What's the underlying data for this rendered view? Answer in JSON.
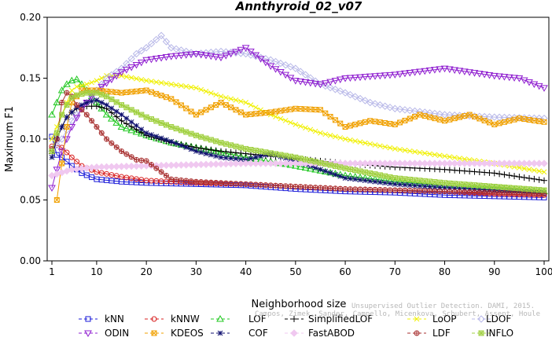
{
  "chart_data": {
    "type": "line",
    "title": "Annthyroid_02_v07",
    "xlabel": "Neighborhood size",
    "ylabel": "Maximum F1",
    "xlim": [
      1,
      100
    ],
    "ylim": [
      0,
      0.2
    ],
    "xticks": [
      1,
      10,
      20,
      30,
      40,
      50,
      60,
      70,
      80,
      90,
      100
    ],
    "yticks": [
      0,
      0.05,
      0.1,
      0.15,
      0.2
    ],
    "ytick_labels": [
      "0.00",
      "0.05",
      "0.10",
      "0.15",
      "0.20"
    ],
    "legend_position": "bottom",
    "grid": false,
    "series": [
      {
        "name": "kNN",
        "color": "#1a1ad8",
        "marker": "square",
        "points": [
          [
            1,
            0.102
          ],
          [
            2,
            0.087
          ],
          [
            3,
            0.085
          ],
          [
            5,
            0.078
          ],
          [
            7,
            0.072
          ],
          [
            10,
            0.067
          ],
          [
            15,
            0.065
          ],
          [
            20,
            0.064
          ],
          [
            30,
            0.063
          ],
          [
            40,
            0.062
          ],
          [
            50,
            0.059
          ],
          [
            60,
            0.057
          ],
          [
            70,
            0.056
          ],
          [
            80,
            0.054
          ],
          [
            90,
            0.053
          ],
          [
            100,
            0.052
          ]
        ]
      },
      {
        "name": "kNNW",
        "color": "#d82020",
        "marker": "circle",
        "points": [
          [
            1,
            0.094
          ],
          [
            2,
            0.095
          ],
          [
            3,
            0.093
          ],
          [
            5,
            0.085
          ],
          [
            7,
            0.078
          ],
          [
            10,
            0.073
          ],
          [
            15,
            0.069
          ],
          [
            20,
            0.066
          ],
          [
            30,
            0.064
          ],
          [
            40,
            0.063
          ],
          [
            50,
            0.061
          ],
          [
            60,
            0.059
          ],
          [
            70,
            0.058
          ],
          [
            80,
            0.057
          ],
          [
            90,
            0.055
          ],
          [
            100,
            0.054
          ]
        ]
      },
      {
        "name": "LOF",
        "color": "#20c820",
        "marker": "triangle-up",
        "points": [
          [
            1,
            0.12
          ],
          [
            2,
            0.13
          ],
          [
            3,
            0.14
          ],
          [
            4,
            0.145
          ],
          [
            5,
            0.148
          ],
          [
            6,
            0.149
          ],
          [
            7,
            0.145
          ],
          [
            8,
            0.14
          ],
          [
            10,
            0.13
          ],
          [
            12,
            0.12
          ],
          [
            15,
            0.11
          ],
          [
            20,
            0.103
          ],
          [
            25,
            0.097
          ],
          [
            30,
            0.093
          ],
          [
            40,
            0.085
          ],
          [
            50,
            0.078
          ],
          [
            60,
            0.07
          ],
          [
            70,
            0.065
          ],
          [
            80,
            0.062
          ],
          [
            90,
            0.06
          ],
          [
            100,
            0.057
          ]
        ]
      },
      {
        "name": "SimplifiedLOF",
        "color": "#000000",
        "marker": "plus",
        "points": [
          [
            1,
            0.088
          ],
          [
            2,
            0.1
          ],
          [
            3,
            0.11
          ],
          [
            4,
            0.118
          ],
          [
            5,
            0.122
          ],
          [
            6,
            0.125
          ],
          [
            8,
            0.127
          ],
          [
            10,
            0.127
          ],
          [
            12,
            0.125
          ],
          [
            15,
            0.115
          ],
          [
            20,
            0.103
          ],
          [
            25,
            0.097
          ],
          [
            30,
            0.093
          ],
          [
            35,
            0.09
          ],
          [
            40,
            0.088
          ],
          [
            50,
            0.084
          ],
          [
            60,
            0.08
          ],
          [
            70,
            0.077
          ],
          [
            80,
            0.075
          ],
          [
            90,
            0.072
          ],
          [
            100,
            0.066
          ]
        ]
      },
      {
        "name": "LoOP",
        "color": "#f0f000",
        "marker": "x",
        "points": [
          [
            1,
            0.1
          ],
          [
            2,
            0.11
          ],
          [
            3,
            0.12
          ],
          [
            4,
            0.13
          ],
          [
            5,
            0.14
          ],
          [
            6,
            0.143
          ],
          [
            8,
            0.145
          ],
          [
            10,
            0.148
          ],
          [
            12,
            0.152
          ],
          [
            15,
            0.152
          ],
          [
            20,
            0.148
          ],
          [
            25,
            0.145
          ],
          [
            30,
            0.142
          ],
          [
            35,
            0.135
          ],
          [
            40,
            0.13
          ],
          [
            45,
            0.12
          ],
          [
            50,
            0.112
          ],
          [
            55,
            0.105
          ],
          [
            60,
            0.1
          ],
          [
            70,
            0.092
          ],
          [
            80,
            0.086
          ],
          [
            90,
            0.08
          ],
          [
            100,
            0.073
          ]
        ]
      },
      {
        "name": "LDOF",
        "color": "#b8b8e8",
        "marker": "diamond",
        "points": [
          [
            1,
            0.09
          ],
          [
            3,
            0.1
          ],
          [
            5,
            0.115
          ],
          [
            8,
            0.13
          ],
          [
            10,
            0.14
          ],
          [
            12,
            0.15
          ],
          [
            15,
            0.158
          ],
          [
            18,
            0.17
          ],
          [
            20,
            0.175
          ],
          [
            23,
            0.185
          ],
          [
            25,
            0.175
          ],
          [
            30,
            0.17
          ],
          [
            35,
            0.172
          ],
          [
            40,
            0.17
          ],
          [
            45,
            0.165
          ],
          [
            50,
            0.158
          ],
          [
            55,
            0.145
          ],
          [
            60,
            0.138
          ],
          [
            65,
            0.13
          ],
          [
            70,
            0.125
          ],
          [
            80,
            0.12
          ],
          [
            90,
            0.118
          ],
          [
            100,
            0.117
          ]
        ]
      },
      {
        "name": "ODIN",
        "color": "#9020d0",
        "marker": "triangle-down",
        "points": [
          [
            1,
            0.06
          ],
          [
            2,
            0.075
          ],
          [
            3,
            0.09
          ],
          [
            5,
            0.11
          ],
          [
            7,
            0.125
          ],
          [
            10,
            0.14
          ],
          [
            15,
            0.155
          ],
          [
            20,
            0.165
          ],
          [
            25,
            0.168
          ],
          [
            30,
            0.17
          ],
          [
            35,
            0.167
          ],
          [
            40,
            0.175
          ],
          [
            45,
            0.16
          ],
          [
            50,
            0.148
          ],
          [
            55,
            0.145
          ],
          [
            60,
            0.15
          ],
          [
            70,
            0.153
          ],
          [
            80,
            0.158
          ],
          [
            90,
            0.152
          ],
          [
            95,
            0.15
          ],
          [
            100,
            0.142
          ]
        ]
      },
      {
        "name": "KDEOS",
        "color": "#f0a000",
        "marker": "square-x",
        "points": [
          [
            2,
            0.05
          ],
          [
            3,
            0.08
          ],
          [
            4,
            0.11
          ],
          [
            5,
            0.13
          ],
          [
            7,
            0.14
          ],
          [
            10,
            0.14
          ],
          [
            15,
            0.138
          ],
          [
            20,
            0.14
          ],
          [
            25,
            0.133
          ],
          [
            30,
            0.12
          ],
          [
            35,
            0.13
          ],
          [
            40,
            0.12
          ],
          [
            45,
            0.122
          ],
          [
            50,
            0.125
          ],
          [
            55,
            0.124
          ],
          [
            60,
            0.11
          ],
          [
            65,
            0.115
          ],
          [
            70,
            0.112
          ],
          [
            75,
            0.12
          ],
          [
            80,
            0.115
          ],
          [
            85,
            0.12
          ],
          [
            90,
            0.112
          ],
          [
            95,
            0.117
          ],
          [
            100,
            0.114
          ]
        ]
      },
      {
        "name": "COF",
        "color": "#101070",
        "marker": "star",
        "points": [
          [
            1,
            0.085
          ],
          [
            2,
            0.1
          ],
          [
            3,
            0.11
          ],
          [
            4,
            0.118
          ],
          [
            5,
            0.122
          ],
          [
            6,
            0.126
          ],
          [
            8,
            0.13
          ],
          [
            10,
            0.132
          ],
          [
            12,
            0.128
          ],
          [
            15,
            0.12
          ],
          [
            20,
            0.105
          ],
          [
            25,
            0.098
          ],
          [
            30,
            0.09
          ],
          [
            35,
            0.085
          ],
          [
            40,
            0.083
          ],
          [
            45,
            0.088
          ],
          [
            50,
            0.082
          ],
          [
            55,
            0.075
          ],
          [
            60,
            0.068
          ],
          [
            70,
            0.063
          ],
          [
            80,
            0.06
          ],
          [
            90,
            0.058
          ],
          [
            100,
            0.056
          ]
        ]
      },
      {
        "name": "FastABOD",
        "color": "#f0c8f0",
        "marker": "diamond-filled",
        "points": [
          [
            1,
            0.07
          ],
          [
            5,
            0.075
          ],
          [
            10,
            0.077
          ],
          [
            20,
            0.078
          ],
          [
            30,
            0.079
          ],
          [
            40,
            0.08
          ],
          [
            50,
            0.08
          ],
          [
            60,
            0.08
          ],
          [
            70,
            0.08
          ],
          [
            80,
            0.08
          ],
          [
            90,
            0.08
          ],
          [
            100,
            0.08
          ]
        ]
      },
      {
        "name": "LDF",
        "color": "#a83030",
        "marker": "circle-plus",
        "points": [
          [
            1,
            0.092
          ],
          [
            2,
            0.1
          ],
          [
            3,
            0.13
          ],
          [
            4,
            0.138
          ],
          [
            5,
            0.135
          ],
          [
            6,
            0.128
          ],
          [
            8,
            0.12
          ],
          [
            10,
            0.11
          ],
          [
            12,
            0.1
          ],
          [
            15,
            0.09
          ],
          [
            18,
            0.083
          ],
          [
            20,
            0.082
          ],
          [
            25,
            0.067
          ],
          [
            30,
            0.065
          ],
          [
            40,
            0.063
          ],
          [
            50,
            0.061
          ],
          [
            60,
            0.059
          ],
          [
            70,
            0.058
          ],
          [
            80,
            0.057
          ],
          [
            90,
            0.056
          ],
          [
            100,
            0.055
          ]
        ]
      },
      {
        "name": "INFLO",
        "color": "#a0d040",
        "marker": "square-star",
        "points": [
          [
            1,
            0.09
          ],
          [
            2,
            0.105
          ],
          [
            3,
            0.12
          ],
          [
            4,
            0.128
          ],
          [
            5,
            0.134
          ],
          [
            6,
            0.136
          ],
          [
            8,
            0.138
          ],
          [
            10,
            0.138
          ],
          [
            12,
            0.135
          ],
          [
            15,
            0.128
          ],
          [
            20,
            0.118
          ],
          [
            25,
            0.11
          ],
          [
            30,
            0.103
          ],
          [
            35,
            0.097
          ],
          [
            40,
            0.092
          ],
          [
            50,
            0.085
          ],
          [
            60,
            0.076
          ],
          [
            70,
            0.068
          ],
          [
            80,
            0.064
          ],
          [
            90,
            0.061
          ],
          [
            100,
            0.058
          ]
        ]
      }
    ]
  },
  "watermark": {
    "line1": "Unsupervised Outlier Detection. DAMI, 2015.",
    "line2": "Campos, Zimek, Sander, Campello, Micenkova, Schubert, Assent, Houle"
  }
}
